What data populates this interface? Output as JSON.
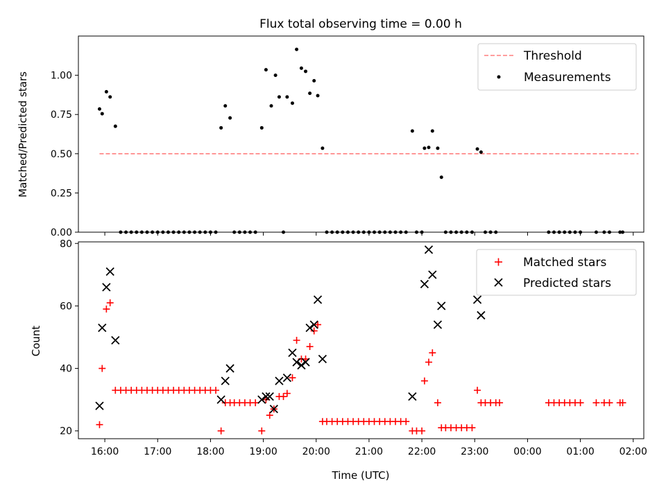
{
  "chart_data": [
    {
      "type": "scatter",
      "title": "Flux total observing time = 0.00 h",
      "ylabel": "Matched/Predicted stars",
      "xlabel": "",
      "x_unit": "hours (16 = 16:00 UTC, 24 = 00:00, 26 = 02:00)",
      "xlim": [
        15.5,
        26.2
      ],
      "ylim": [
        0,
        1.25
      ],
      "yticks": [
        "0.00",
        "0.25",
        "0.50",
        "0.75",
        "1.00"
      ],
      "ytick_values": [
        0,
        0.25,
        0.5,
        0.75,
        1.0
      ],
      "xticks_shown": false,
      "legend": "top-right",
      "threshold": {
        "name": "Threshold",
        "value": 0.5,
        "x": [
          15.9,
          26.1
        ],
        "color": "#ff7f7f",
        "style": "dashed"
      },
      "series": [
        {
          "name": "Measurements",
          "color": "#000000",
          "marker": "dot",
          "points": [
            [
              15.9,
              0.785
            ],
            [
              15.95,
              0.755
            ],
            [
              16.03,
              0.895
            ],
            [
              16.1,
              0.862
            ],
            [
              16.2,
              0.675
            ],
            [
              16.3,
              0
            ],
            [
              16.4,
              0
            ],
            [
              16.5,
              0
            ],
            [
              16.6,
              0
            ],
            [
              16.7,
              0
            ],
            [
              16.8,
              0
            ],
            [
              16.9,
              0
            ],
            [
              17.0,
              0
            ],
            [
              17.1,
              0
            ],
            [
              17.2,
              0
            ],
            [
              17.3,
              0
            ],
            [
              17.4,
              0
            ],
            [
              17.5,
              0
            ],
            [
              17.6,
              0
            ],
            [
              17.7,
              0
            ],
            [
              17.8,
              0
            ],
            [
              17.9,
              0
            ],
            [
              18.0,
              0
            ],
            [
              18.1,
              0
            ],
            [
              18.2,
              0.665
            ],
            [
              18.28,
              0.805
            ],
            [
              18.37,
              0.728
            ],
            [
              18.45,
              0
            ],
            [
              18.55,
              0
            ],
            [
              18.65,
              0
            ],
            [
              18.75,
              0
            ],
            [
              18.85,
              0
            ],
            [
              18.97,
              0.665
            ],
            [
              19.05,
              1.035
            ],
            [
              19.15,
              0.805
            ],
            [
              19.23,
              1.0
            ],
            [
              19.3,
              0.862
            ],
            [
              19.38,
              0
            ],
            [
              19.45,
              0.862
            ],
            [
              19.55,
              0.822
            ],
            [
              19.63,
              1.165
            ],
            [
              19.72,
              1.045
            ],
            [
              19.8,
              1.025
            ],
            [
              19.88,
              0.885
            ],
            [
              19.96,
              0.965
            ],
            [
              20.03,
              0.87
            ],
            [
              20.12,
              0.535
            ],
            [
              20.2,
              0
            ],
            [
              20.3,
              0
            ],
            [
              20.4,
              0
            ],
            [
              20.5,
              0
            ],
            [
              20.6,
              0
            ],
            [
              20.7,
              0
            ],
            [
              20.8,
              0
            ],
            [
              20.9,
              0
            ],
            [
              21.0,
              0
            ],
            [
              21.1,
              0
            ],
            [
              21.2,
              0
            ],
            [
              21.3,
              0
            ],
            [
              21.4,
              0
            ],
            [
              21.5,
              0
            ],
            [
              21.6,
              0
            ],
            [
              21.7,
              0
            ],
            [
              21.82,
              0.645
            ],
            [
              21.9,
              0
            ],
            [
              22.0,
              0
            ],
            [
              22.05,
              0.535
            ],
            [
              22.13,
              0.54
            ],
            [
              22.2,
              0.645
            ],
            [
              22.3,
              0.535
            ],
            [
              22.37,
              0.35
            ],
            [
              22.45,
              0
            ],
            [
              22.55,
              0
            ],
            [
              22.65,
              0
            ],
            [
              22.75,
              0
            ],
            [
              22.85,
              0
            ],
            [
              22.95,
              0
            ],
            [
              23.05,
              0.53
            ],
            [
              23.12,
              0.51
            ],
            [
              23.2,
              0
            ],
            [
              23.3,
              0
            ],
            [
              23.4,
              0
            ],
            [
              24.4,
              0
            ],
            [
              24.5,
              0
            ],
            [
              24.6,
              0
            ],
            [
              24.7,
              0
            ],
            [
              24.8,
              0
            ],
            [
              24.9,
              0
            ],
            [
              25.0,
              0
            ],
            [
              25.3,
              0
            ],
            [
              25.45,
              0
            ],
            [
              25.55,
              0
            ],
            [
              25.75,
              0
            ],
            [
              25.8,
              0
            ]
          ]
        }
      ]
    },
    {
      "type": "scatter",
      "title": "",
      "ylabel": "Count",
      "xlabel": "Time (UTC)",
      "x_unit": "hours (16 = 16:00 UTC, 24 = 00:00, 26 = 02:00)",
      "xlim": [
        15.5,
        26.2
      ],
      "ylim": [
        17.5,
        80.5
      ],
      "yticks": [
        "20",
        "40",
        "60",
        "80"
      ],
      "ytick_values": [
        20,
        40,
        60,
        80
      ],
      "xticks": [
        "16:00",
        "17:00",
        "18:00",
        "19:00",
        "20:00",
        "21:00",
        "22:00",
        "23:00",
        "00:00",
        "01:00",
        "02:00"
      ],
      "xtick_values": [
        16,
        17,
        18,
        19,
        20,
        21,
        22,
        23,
        24,
        25,
        26
      ],
      "legend": "top-right",
      "series": [
        {
          "name": "Matched stars",
          "color": "#ff0000",
          "marker": "plus",
          "points": [
            [
              15.9,
              22
            ],
            [
              15.95,
              40
            ],
            [
              16.03,
              59
            ],
            [
              16.1,
              61
            ],
            [
              16.2,
              33
            ],
            [
              16.3,
              33
            ],
            [
              16.4,
              33
            ],
            [
              16.5,
              33
            ],
            [
              16.6,
              33
            ],
            [
              16.7,
              33
            ],
            [
              16.8,
              33
            ],
            [
              16.9,
              33
            ],
            [
              17.0,
              33
            ],
            [
              17.1,
              33
            ],
            [
              17.2,
              33
            ],
            [
              17.3,
              33
            ],
            [
              17.4,
              33
            ],
            [
              17.5,
              33
            ],
            [
              17.6,
              33
            ],
            [
              17.7,
              33
            ],
            [
              17.8,
              33
            ],
            [
              17.9,
              33
            ],
            [
              18.0,
              33
            ],
            [
              18.1,
              33
            ],
            [
              18.2,
              20
            ],
            [
              18.28,
              29
            ],
            [
              18.37,
              29
            ],
            [
              18.45,
              29
            ],
            [
              18.55,
              29
            ],
            [
              18.65,
              29
            ],
            [
              18.75,
              29
            ],
            [
              18.85,
              29
            ],
            [
              18.97,
              20
            ],
            [
              19.05,
              30
            ],
            [
              19.12,
              25
            ],
            [
              19.2,
              27
            ],
            [
              19.3,
              31
            ],
            [
              19.38,
              31
            ],
            [
              19.45,
              32
            ],
            [
              19.55,
              37
            ],
            [
              19.63,
              49
            ],
            [
              19.72,
              43
            ],
            [
              19.8,
              43
            ],
            [
              19.88,
              47
            ],
            [
              19.96,
              52
            ],
            [
              20.03,
              54
            ],
            [
              20.12,
              23
            ],
            [
              20.2,
              23
            ],
            [
              20.3,
              23
            ],
            [
              20.4,
              23
            ],
            [
              20.5,
              23
            ],
            [
              20.6,
              23
            ],
            [
              20.7,
              23
            ],
            [
              20.8,
              23
            ],
            [
              20.9,
              23
            ],
            [
              21.0,
              23
            ],
            [
              21.1,
              23
            ],
            [
              21.2,
              23
            ],
            [
              21.3,
              23
            ],
            [
              21.4,
              23
            ],
            [
              21.5,
              23
            ],
            [
              21.6,
              23
            ],
            [
              21.7,
              23
            ],
            [
              21.82,
              20
            ],
            [
              21.9,
              20
            ],
            [
              22.0,
              20
            ],
            [
              22.05,
              36
            ],
            [
              22.13,
              42
            ],
            [
              22.2,
              45
            ],
            [
              22.3,
              29
            ],
            [
              22.37,
              21
            ],
            [
              22.45,
              21
            ],
            [
              22.55,
              21
            ],
            [
              22.65,
              21
            ],
            [
              22.75,
              21
            ],
            [
              22.85,
              21
            ],
            [
              22.95,
              21
            ],
            [
              23.05,
              33
            ],
            [
              23.12,
              29
            ],
            [
              23.2,
              29
            ],
            [
              23.3,
              29
            ],
            [
              23.4,
              29
            ],
            [
              23.47,
              29
            ],
            [
              24.4,
              29
            ],
            [
              24.5,
              29
            ],
            [
              24.6,
              29
            ],
            [
              24.7,
              29
            ],
            [
              24.8,
              29
            ],
            [
              24.9,
              29
            ],
            [
              25.0,
              29
            ],
            [
              25.3,
              29
            ],
            [
              25.45,
              29
            ],
            [
              25.55,
              29
            ],
            [
              25.75,
              29
            ],
            [
              25.8,
              29
            ]
          ]
        },
        {
          "name": "Predicted stars",
          "color": "#000000",
          "marker": "x",
          "points": [
            [
              15.9,
              28
            ],
            [
              15.95,
              53
            ],
            [
              16.03,
              66
            ],
            [
              16.1,
              71
            ],
            [
              16.2,
              49
            ],
            [
              18.2,
              30
            ],
            [
              18.28,
              36
            ],
            [
              18.37,
              40
            ],
            [
              18.97,
              30
            ],
            [
              19.05,
              31
            ],
            [
              19.12,
              31
            ],
            [
              19.2,
              27
            ],
            [
              19.3,
              36
            ],
            [
              19.45,
              37
            ],
            [
              19.55,
              45
            ],
            [
              19.63,
              42
            ],
            [
              19.72,
              41
            ],
            [
              19.8,
              42
            ],
            [
              19.88,
              53
            ],
            [
              19.96,
              54
            ],
            [
              20.03,
              62
            ],
            [
              20.12,
              43
            ],
            [
              21.82,
              31
            ],
            [
              22.05,
              67
            ],
            [
              22.13,
              78
            ],
            [
              22.2,
              70
            ],
            [
              22.3,
              54
            ],
            [
              22.37,
              60
            ],
            [
              23.05,
              62
            ],
            [
              23.12,
              57
            ]
          ]
        }
      ]
    }
  ]
}
